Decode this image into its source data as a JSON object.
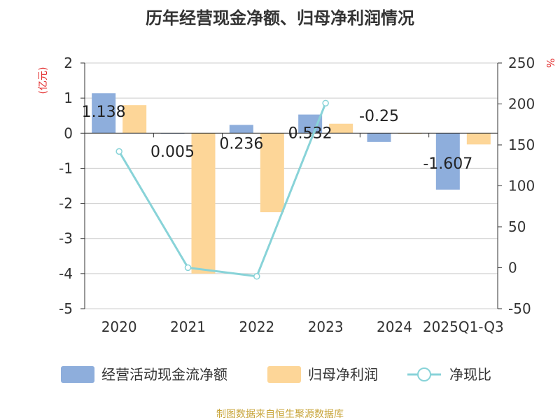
{
  "chart_data": {
    "type": "bar",
    "title": "历年经营现金净额、归母净利润情况",
    "categories": [
      "2020",
      "2021",
      "2022",
      "2023",
      "2024",
      "2025Q1-Q3"
    ],
    "y_left": {
      "label": "(亿元)",
      "range": [
        -5,
        2
      ],
      "ticks": [
        2,
        1,
        0,
        -1,
        -2,
        -3,
        -4,
        -5
      ]
    },
    "y_right": {
      "label": "%",
      "range": [
        -50,
        250
      ],
      "ticks": [
        250,
        200,
        150,
        100,
        50,
        0,
        -50
      ]
    },
    "series": [
      {
        "name": "经营活动现金流净额",
        "type": "bar",
        "axis": "left",
        "color": "#8eaedc",
        "values": [
          1.138,
          0.005,
          0.236,
          0.532,
          -0.25,
          -1.607
        ],
        "labels": [
          "1.138",
          "0.005",
          "0.236",
          "0.532",
          "-0.25",
          "-1.607"
        ]
      },
      {
        "name": "归母净利润",
        "type": "bar",
        "axis": "left",
        "color": "#fdd698",
        "values": [
          0.8,
          -4.0,
          -2.25,
          0.27,
          -0.02,
          -0.32
        ]
      },
      {
        "name": "净现比",
        "type": "line",
        "axis": "right",
        "color": "#88d3d8",
        "values": [
          142,
          0.1,
          -10.5,
          201,
          null,
          null
        ]
      }
    ],
    "legend_position": "bottom",
    "grid": true
  },
  "source": "制图数据来自恒生聚源数据库",
  "colors": {
    "title": "#333333",
    "axis": "#333333",
    "grid": "#cccccc",
    "axis_label": "#e32b2b",
    "source": "#c8a53a"
  }
}
